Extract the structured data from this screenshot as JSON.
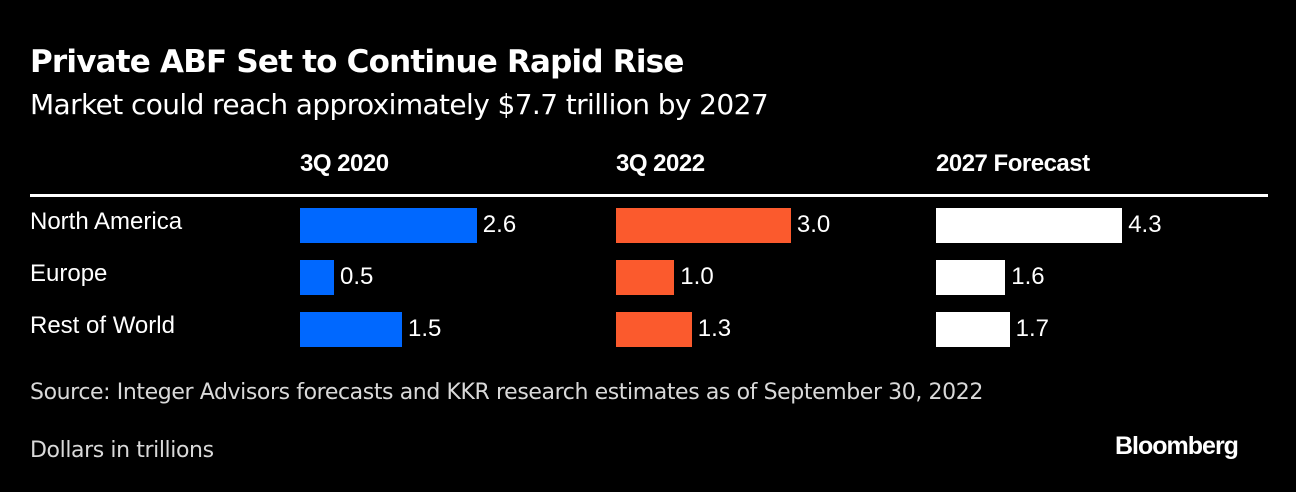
{
  "chart_data": {
    "type": "bar",
    "title": "Private ABF Set to Continue Rapid Rise",
    "subtitle": "Market could reach approximately $7.7 trillion by 2027",
    "categories": [
      "North America",
      "Europe",
      "Rest of World"
    ],
    "series": [
      {
        "name": "3Q 2020",
        "color": "#0068ff",
        "values": [
          2.6,
          0.5,
          1.5
        ]
      },
      {
        "name": "3Q 2022",
        "color": "#fb5a2d",
        "values": [
          3.0,
          1.0,
          1.3
        ]
      },
      {
        "name": "2027 Forecast",
        "color": "#ffffff",
        "values": [
          4.3,
          1.6,
          1.7
        ]
      }
    ],
    "value_labels": [
      [
        "2.6",
        "0.5",
        "1.5"
      ],
      [
        "3.0",
        "1.0",
        "1.3"
      ],
      [
        "4.3",
        "1.6",
        "1.7"
      ]
    ],
    "layout": "small-multiples horizontal bars, one panel per period",
    "grid": false,
    "units": "Dollars in trillions"
  },
  "footer": {
    "source": "Source: Integer Advisors forecasts and KKR research estimates as of September 30, 2022",
    "note": "Dollars in trillions",
    "brand": "Bloomberg"
  }
}
